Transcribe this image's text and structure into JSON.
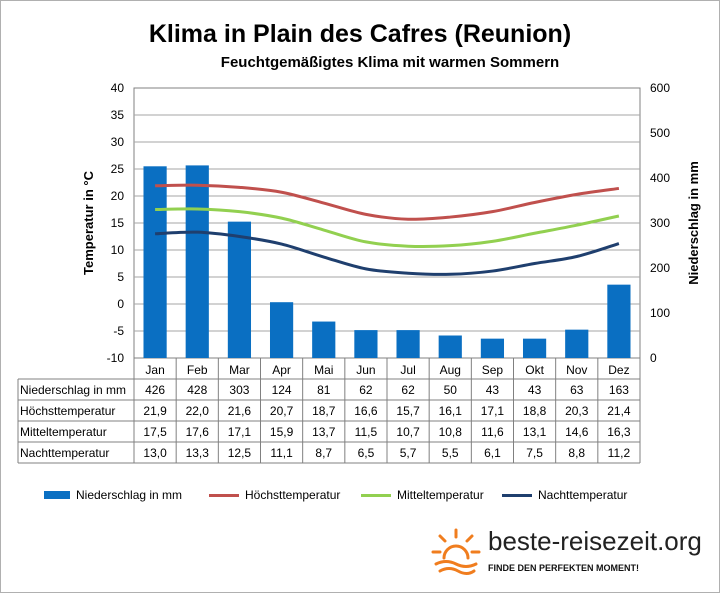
{
  "title": "Klima in Plain des Cafres (Reunion)",
  "subtitle": "Feuchtgemäßigtes Klima mit warmen Sommern",
  "chart_data": {
    "type": "bar",
    "categories": [
      "Jan",
      "Feb",
      "Mar",
      "Apr",
      "Mai",
      "Jun",
      "Jul",
      "Aug",
      "Sep",
      "Okt",
      "Nov",
      "Dez"
    ],
    "ylabel_left": "Temperatur in °C",
    "ylabel_right": "Niederschlag in mm",
    "ylim_left": [
      -10,
      40
    ],
    "yticks_left": [
      "40",
      "35",
      "30",
      "25",
      "20",
      "15",
      "10",
      "5",
      "0",
      "-5",
      "-10"
    ],
    "ylim_right": [
      0,
      600
    ],
    "yticks_right": [
      "600",
      "500",
      "400",
      "300",
      "200",
      "100",
      "0"
    ],
    "grid": true,
    "legend_position": "bottom",
    "series": [
      {
        "name": "Niederschlag in mm",
        "type": "bar",
        "axis": "right",
        "color": "#0a6fc2",
        "values": [
          426,
          428,
          303,
          124,
          81,
          62,
          62,
          50,
          43,
          43,
          63,
          163
        ]
      },
      {
        "name": "Höchsttemperatur",
        "type": "line",
        "axis": "left",
        "color": "#c0504d",
        "values": [
          21.9,
          22.0,
          21.6,
          20.7,
          18.7,
          16.6,
          15.7,
          16.1,
          17.1,
          18.8,
          20.3,
          21.4
        ]
      },
      {
        "name": "Mitteltemperatur",
        "type": "line",
        "axis": "left",
        "color": "#92d050",
        "values": [
          17.5,
          17.6,
          17.1,
          15.9,
          13.7,
          11.5,
          10.7,
          10.8,
          11.6,
          13.1,
          14.6,
          16.3
        ]
      },
      {
        "name": "Nachttemperatur",
        "type": "line",
        "axis": "left",
        "color": "#1f3f6e",
        "values": [
          13.0,
          13.3,
          12.5,
          11.1,
          8.7,
          6.5,
          5.7,
          5.5,
          6.1,
          7.5,
          8.8,
          11.2
        ]
      }
    ],
    "table": {
      "rows": [
        {
          "label": "Niederschlag in mm",
          "cells": [
            "426",
            "428",
            "303",
            "124",
            "81",
            "62",
            "62",
            "50",
            "43",
            "43",
            "63",
            "163"
          ]
        },
        {
          "label": "Höchsttemperatur",
          "cells": [
            "21,9",
            "22,0",
            "21,6",
            "20,7",
            "18,7",
            "16,6",
            "15,7",
            "16,1",
            "17,1",
            "18,8",
            "20,3",
            "21,4"
          ]
        },
        {
          "label": "Mitteltemperatur",
          "cells": [
            "17,5",
            "17,6",
            "17,1",
            "15,9",
            "13,7",
            "11,5",
            "10,7",
            "10,8",
            "11,6",
            "13,1",
            "14,6",
            "16,3"
          ]
        },
        {
          "label": "Nachttemperatur",
          "cells": [
            "13,0",
            "13,3",
            "12,5",
            "11,1",
            "8,7",
            "6,5",
            "5,7",
            "5,5",
            "6,1",
            "7,5",
            "8,8",
            "11,2"
          ]
        }
      ]
    }
  },
  "brand": {
    "name": "beste-reisezeit.org",
    "slogan": "FINDE DEN PERFEKTEN MOMENT!",
    "sun_color": "#f07d1e"
  }
}
